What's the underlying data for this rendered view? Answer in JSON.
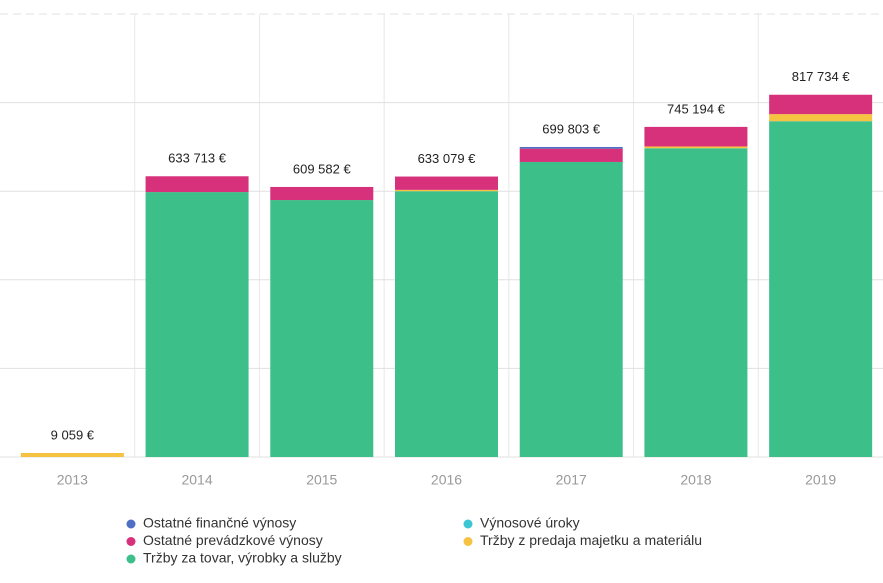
{
  "chart_data": {
    "type": "stacked_bar",
    "categories": [
      "2013",
      "2014",
      "2015",
      "2016",
      "2017",
      "2018",
      "2019"
    ],
    "series": [
      {
        "name": "Ostatné finančné výnosy",
        "color": "#4f6fc4",
        "values": [
          0,
          0,
          0,
          0,
          3803,
          0,
          0
        ]
      },
      {
        "name": "Výnosové úroky",
        "color": "#3cc6d4",
        "values": [
          0,
          0,
          0,
          0,
          0,
          0,
          0
        ]
      },
      {
        "name": "Ostatné prevádzkové výnosy",
        "color": "#d6317a",
        "values": [
          0,
          35713,
          29582,
          30079,
          30000,
          44194,
          43734
        ]
      },
      {
        "name": "Tržby z predaja majetku a materiálu",
        "color": "#f5c242",
        "values": [
          9059,
          0,
          0,
          3000,
          0,
          4000,
          16000
        ]
      },
      {
        "name": "Tržby za tovar, výrobky a služby",
        "color": "#3dbf8a",
        "values": [
          0,
          598000,
          580000,
          600000,
          666000,
          697000,
          758000
        ]
      }
    ],
    "totals": [
      9059,
      633713,
      609582,
      633079,
      699803,
      745194,
      817734
    ],
    "total_labels": [
      "9 059 €",
      "633 713 €",
      "609 582 €",
      "633 079 €",
      "699 803 €",
      "745 194 €",
      "817 734 €"
    ],
    "ylim": [
      0,
      1000000
    ],
    "yticks": [
      0,
      200000,
      400000,
      600000,
      800000,
      1000000
    ],
    "grid": true
  }
}
